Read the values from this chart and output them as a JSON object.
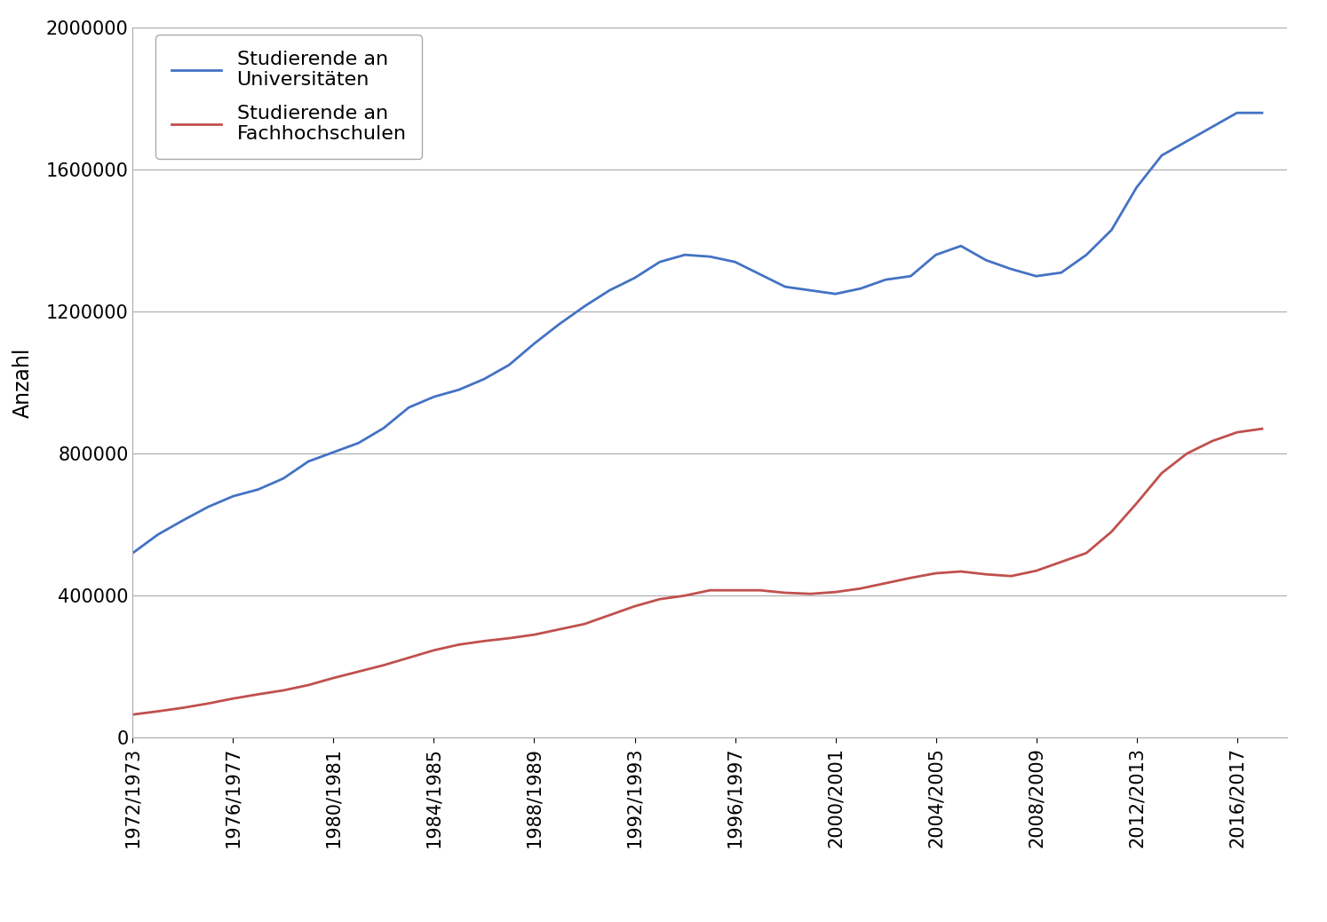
{
  "title": "",
  "ylabel": "Anzahl",
  "xlabel": "",
  "line1_label": "Studierende an\nUniversitäten",
  "line2_label": "Studierende an\nFachhochschulen",
  "line1_color": "#4472C4",
  "line2_color": "#C0504D",
  "background_color": "#ffffff",
  "ylim": [
    0,
    2000000
  ],
  "yticks": [
    0,
    400000,
    800000,
    1200000,
    1600000,
    2000000
  ],
  "x_labels": [
    "1972/1973",
    "1976/1977",
    "1980/1981",
    "1984/1985",
    "1988/1989",
    "1992/1993",
    "1996/1997",
    "2000/2001",
    "2004/2005",
    "2008/2009",
    "2012/2013",
    "2016/2017"
  ],
  "x_tick_positions": [
    1972,
    1976,
    1980,
    1984,
    1988,
    1992,
    1996,
    2000,
    2004,
    2008,
    2012,
    2016
  ],
  "uni_data": [
    [
      1972,
      519900
    ],
    [
      1973,
      571800
    ],
    [
      1974,
      611900
    ],
    [
      1975,
      649800
    ],
    [
      1976,
      680000
    ],
    [
      1977,
      699000
    ],
    [
      1978,
      730000
    ],
    [
      1979,
      778000
    ],
    [
      1980,
      804000
    ],
    [
      1981,
      830000
    ],
    [
      1982,
      872000
    ],
    [
      1983,
      930000
    ],
    [
      1984,
      960000
    ],
    [
      1985,
      980000
    ],
    [
      1986,
      1010000
    ],
    [
      1987,
      1050000
    ],
    [
      1988,
      1110000
    ],
    [
      1989,
      1165000
    ],
    [
      1990,
      1215000
    ],
    [
      1991,
      1260000
    ],
    [
      1992,
      1295000
    ],
    [
      1993,
      1340000
    ],
    [
      1994,
      1360000
    ],
    [
      1995,
      1355000
    ],
    [
      1996,
      1340000
    ],
    [
      1997,
      1305000
    ],
    [
      1998,
      1270000
    ],
    [
      1999,
      1260000
    ],
    [
      2000,
      1250000
    ],
    [
      2001,
      1265000
    ],
    [
      2002,
      1290000
    ],
    [
      2003,
      1300000
    ],
    [
      2004,
      1360000
    ],
    [
      2005,
      1385000
    ],
    [
      2006,
      1345000
    ],
    [
      2007,
      1320000
    ],
    [
      2008,
      1300000
    ],
    [
      2009,
      1310000
    ],
    [
      2010,
      1360000
    ],
    [
      2011,
      1430000
    ],
    [
      2012,
      1550000
    ],
    [
      2013,
      1640000
    ],
    [
      2014,
      1680000
    ],
    [
      2015,
      1720000
    ],
    [
      2016,
      1760000
    ],
    [
      2017,
      1760000
    ]
  ],
  "fh_data": [
    [
      1972,
      65000
    ],
    [
      1973,
      74000
    ],
    [
      1974,
      84000
    ],
    [
      1975,
      96000
    ],
    [
      1976,
      110000
    ],
    [
      1977,
      122000
    ],
    [
      1978,
      133000
    ],
    [
      1979,
      148000
    ],
    [
      1980,
      168000
    ],
    [
      1981,
      186000
    ],
    [
      1982,
      204000
    ],
    [
      1983,
      225000
    ],
    [
      1984,
      246000
    ],
    [
      1985,
      262000
    ],
    [
      1986,
      272000
    ],
    [
      1987,
      280000
    ],
    [
      1988,
      290000
    ],
    [
      1989,
      305000
    ],
    [
      1990,
      320000
    ],
    [
      1991,
      345000
    ],
    [
      1992,
      370000
    ],
    [
      1993,
      390000
    ],
    [
      1994,
      400000
    ],
    [
      1995,
      415000
    ],
    [
      1996,
      415000
    ],
    [
      1997,
      415000
    ],
    [
      1998,
      408000
    ],
    [
      1999,
      405000
    ],
    [
      2000,
      410000
    ],
    [
      2001,
      420000
    ],
    [
      2002,
      435000
    ],
    [
      2003,
      450000
    ],
    [
      2004,
      463000
    ],
    [
      2005,
      468000
    ],
    [
      2006,
      460000
    ],
    [
      2007,
      455000
    ],
    [
      2008,
      470000
    ],
    [
      2009,
      495000
    ],
    [
      2010,
      520000
    ],
    [
      2011,
      580000
    ],
    [
      2012,
      660000
    ],
    [
      2013,
      745000
    ],
    [
      2014,
      800000
    ],
    [
      2015,
      835000
    ],
    [
      2016,
      860000
    ],
    [
      2017,
      870000
    ]
  ],
  "grid_color": "#aaaaaa",
  "line_width": 2.0,
  "label_fontsize": 17,
  "tick_fontsize": 15,
  "legend_fontsize": 16,
  "xlim": [
    1972,
    2018
  ]
}
